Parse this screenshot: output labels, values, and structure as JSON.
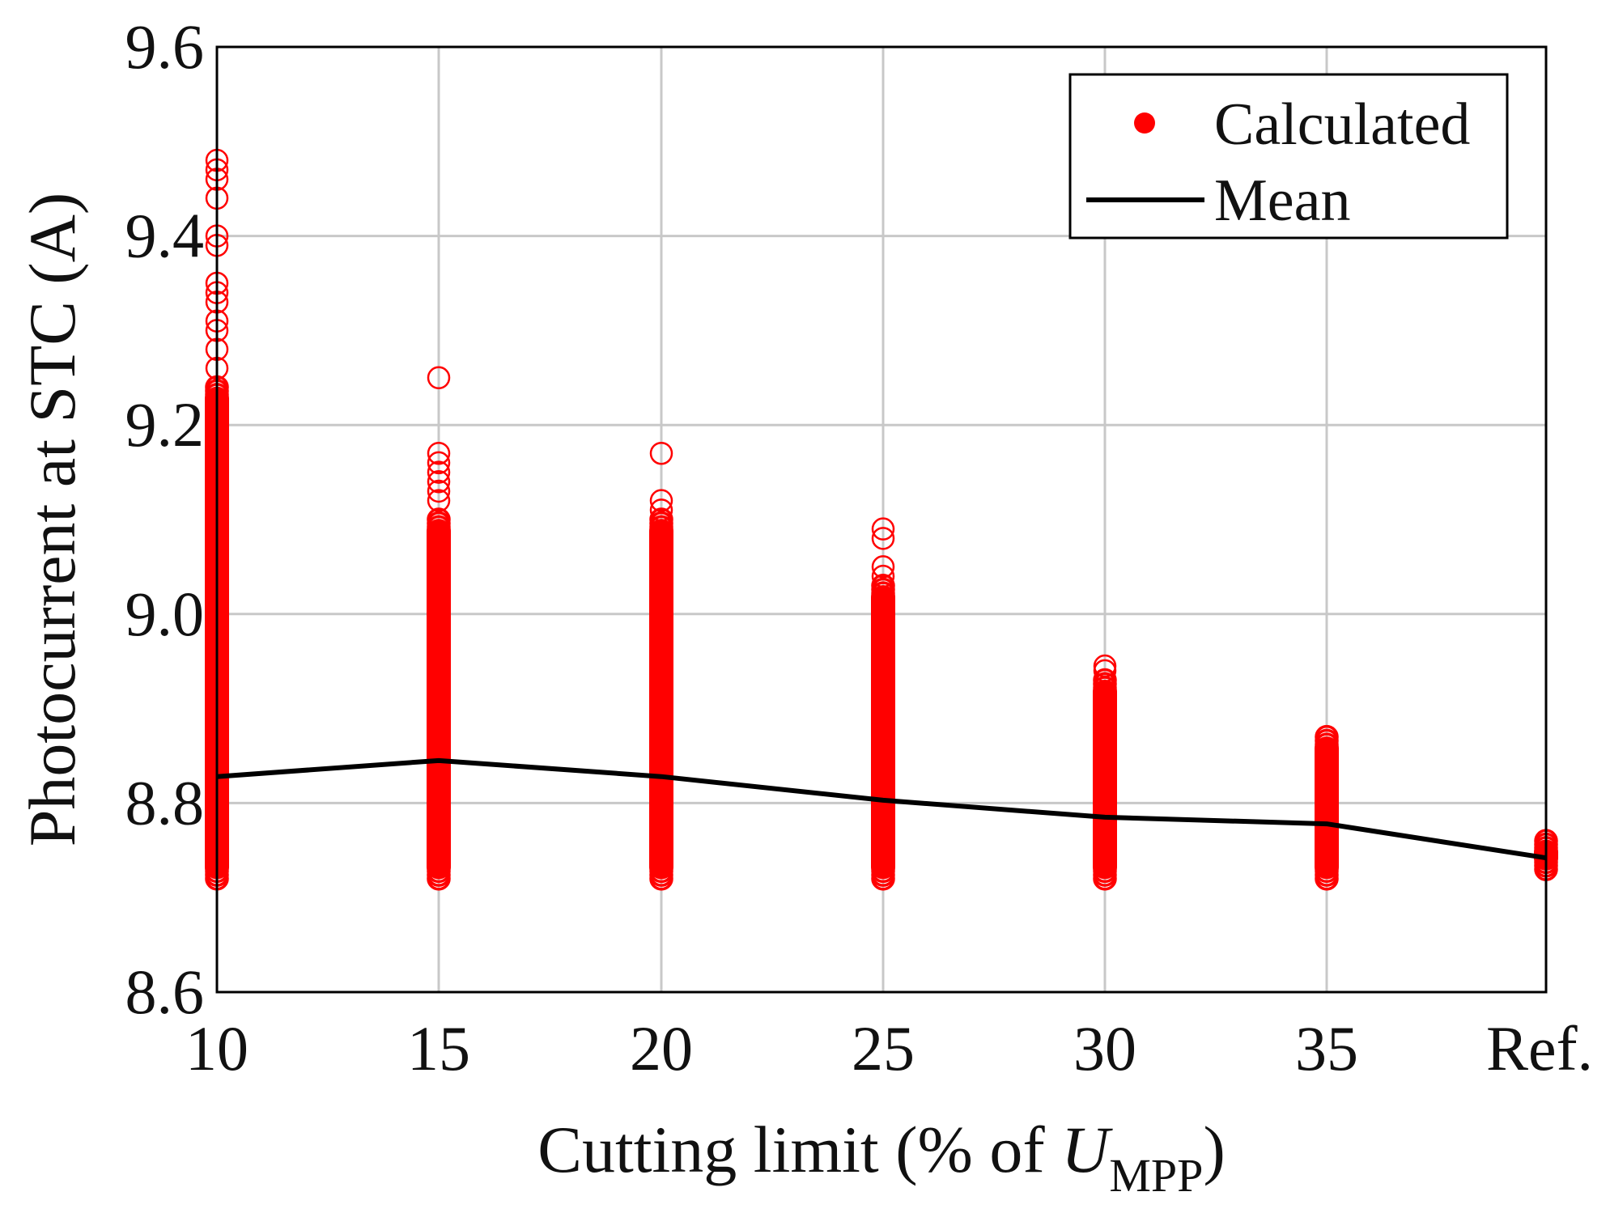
{
  "chart_data": {
    "type": "scatter",
    "categories": [
      "10",
      "15",
      "20",
      "25",
      "30",
      "35",
      "Ref."
    ],
    "ylim": [
      8.6,
      9.6
    ],
    "yticks": [
      "8.6",
      "8.8",
      "9.0",
      "9.2",
      "9.4",
      "9.6"
    ],
    "xlabel_parts": [
      "Cutting limit (% of ",
      "U",
      "MPP",
      ")"
    ],
    "ylabel": "Photocurrent at STC (A)",
    "grid": true,
    "legend": {
      "placement": "top-right",
      "entries": [
        {
          "label": "Calculated",
          "marker": "filled-circle"
        },
        {
          "label": "Mean",
          "marker": "line"
        }
      ]
    },
    "series": [
      {
        "name": "Calculated",
        "color": "#ff0000",
        "ranges": [
          {
            "category": "10",
            "min": 8.72,
            "max": 9.24
          },
          {
            "category": "15",
            "min": 8.72,
            "max": 9.1
          },
          {
            "category": "20",
            "min": 8.72,
            "max": 9.1
          },
          {
            "category": "25",
            "min": 8.72,
            "max": 9.03
          },
          {
            "category": "30",
            "min": 8.72,
            "max": 8.93
          },
          {
            "category": "35",
            "min": 8.72,
            "max": 8.87
          },
          {
            "category": "Ref.",
            "min": 8.73,
            "max": 8.76
          }
        ],
        "outliers": [
          {
            "category": "10",
            "values": [
              9.48,
              9.47,
              9.46,
              9.44,
              9.4,
              9.39,
              9.35,
              9.34,
              9.33,
              9.31,
              9.3,
              9.28,
              9.26
            ]
          },
          {
            "category": "15",
            "values": [
              9.25,
              9.17,
              9.16,
              9.15,
              9.14,
              9.13,
              9.12
            ]
          },
          {
            "category": "20",
            "values": [
              9.17,
              9.12,
              9.11
            ]
          },
          {
            "category": "25",
            "values": [
              9.09,
              9.08,
              9.05,
              9.04
            ]
          },
          {
            "category": "30",
            "values": [
              8.945,
              8.94
            ]
          }
        ]
      },
      {
        "name": "Mean",
        "color": "#000000",
        "values": [
          8.828,
          8.845,
          8.828,
          8.803,
          8.785,
          8.778,
          8.742
        ]
      }
    ]
  }
}
